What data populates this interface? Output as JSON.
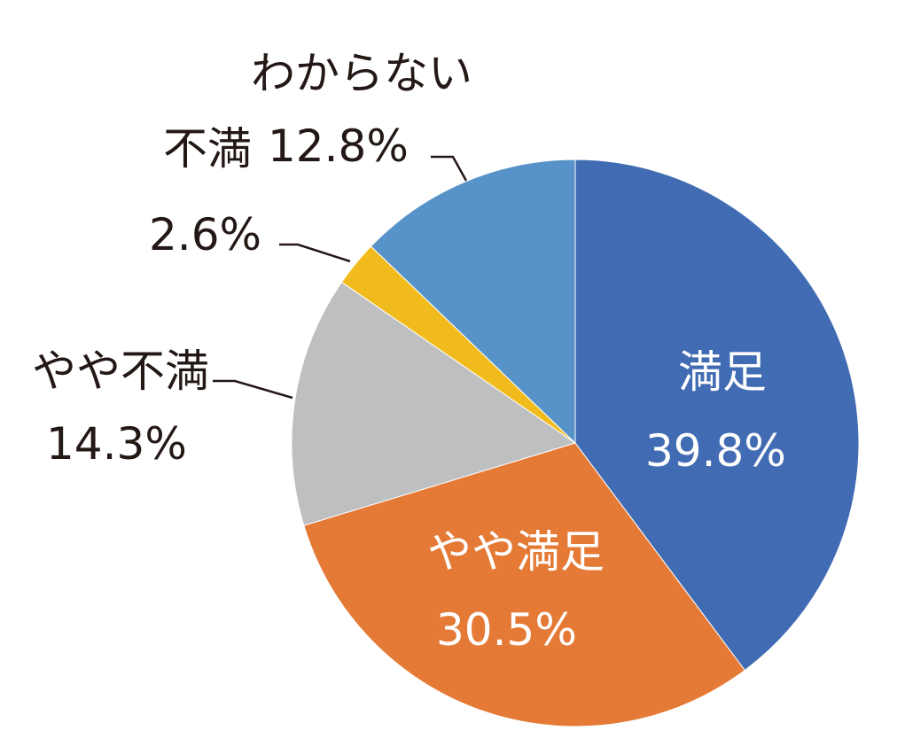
{
  "chart_data": {
    "type": "pie",
    "title": "",
    "start_angle": "12 o'clock, clockwise",
    "categories": [
      "満足",
      "やや満足",
      "やや不満",
      "不満",
      "わからない"
    ],
    "values": [
      39.8,
      30.5,
      14.3,
      2.6,
      12.8
    ],
    "colors": [
      "#416cb3",
      "#e47a35",
      "#bebfc1",
      "#f2bb1d",
      "#5793c9"
    ],
    "labels": [
      {
        "category": "満足",
        "value_text": "39.8%",
        "position": "inside"
      },
      {
        "category": "やや満足",
        "value_text": "30.5%",
        "position": "inside"
      },
      {
        "category": "やや不満",
        "value_text": "14.3%",
        "position": "outside-leader"
      },
      {
        "category": "不満",
        "value_text": "2.6%",
        "position": "outside-leader"
      },
      {
        "category": "わからない",
        "value_text": "12.8%",
        "position": "outside-leader"
      }
    ],
    "legend": "none"
  }
}
